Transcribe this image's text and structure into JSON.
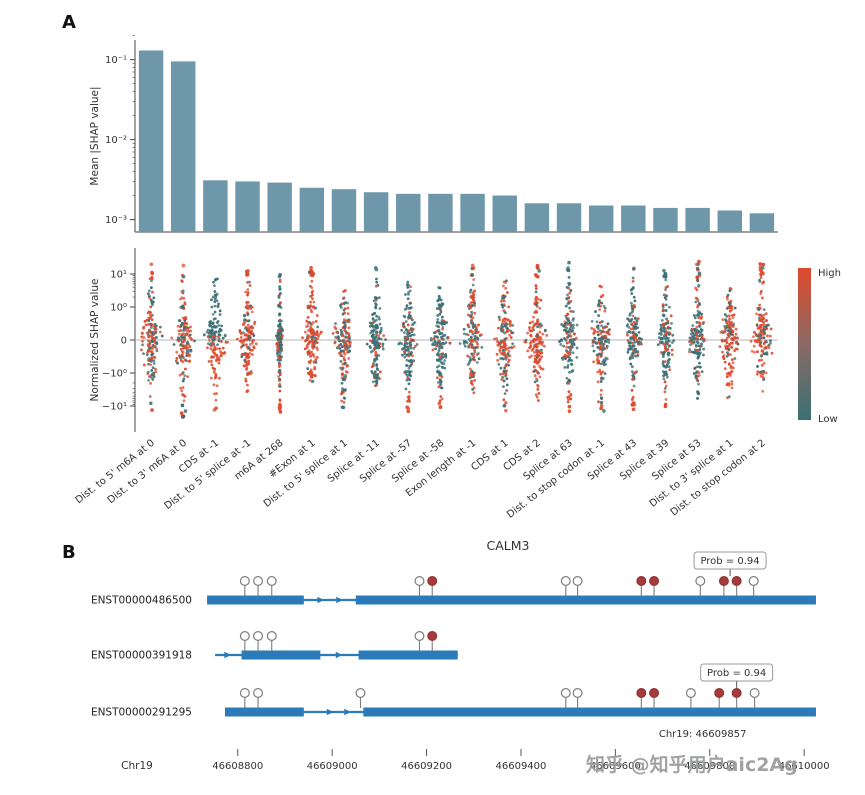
{
  "panels": {
    "a_label": "A",
    "b_label": "B"
  },
  "watermark": "知乎 @知乎用户aic2Ag",
  "colors": {
    "bar": "#6e97aa",
    "red": "#df4a2e",
    "teal": "#3a7075",
    "blue": "#2b7bba",
    "site_filled": "#a73b3c",
    "site_filled_stroke": "#8f3335",
    "axis": "#444444",
    "label": "#333333",
    "watermark": "#97999b"
  },
  "chart_data": [
    {
      "type": "bar",
      "title": "",
      "ylabel": "Mean |SHAP value|",
      "yscale": "log",
      "ylim": [
        0.0007,
        0.2
      ],
      "yticks": [
        {
          "v": 0.1,
          "label": "10⁻¹"
        },
        {
          "v": 0.01,
          "label": "10⁻²"
        },
        {
          "v": 0.001,
          "label": "10⁻³"
        }
      ],
      "categories": [
        "Dist. to 5' m6A at 0",
        "Dist. to 3' m6A at 0",
        "CDS at -1",
        "Dist. to 5' splice at -1",
        "m6A at 268",
        "#Exon at 1",
        "Dist. to 5' splice at 1",
        "Splice at -11",
        "Splice at -57",
        "Splice at -58",
        "Exon length at -1",
        "CDS at 1",
        "CDS at 2",
        "Splice at 63",
        "Dist. to stop codon at -1",
        "Splice at 43",
        "Splice at 39",
        "Splice at 53",
        "Dist. to 3' splice at 1",
        "Dist. to stop codon at 2"
      ],
      "values": [
        0.13,
        0.095,
        0.0031,
        0.003,
        0.0029,
        0.0025,
        0.0024,
        0.0022,
        0.0021,
        0.0021,
        0.0021,
        0.002,
        0.0016,
        0.0016,
        0.0015,
        0.0015,
        0.0014,
        0.0014,
        0.0013,
        0.0012
      ]
    },
    {
      "type": "beeswarm",
      "ylabel": "Normalized SHAP value",
      "yscale": "symlog",
      "yticks": [
        {
          "u": 2,
          "label": "10¹"
        },
        {
          "u": 1,
          "label": "10⁰"
        },
        {
          "u": 0,
          "label": "0"
        },
        {
          "u": -1,
          "label": "−10⁰"
        },
        {
          "u": -2,
          "label": "−10¹"
        }
      ],
      "colorbar": {
        "high_label": "High",
        "low_label": "Low"
      },
      "violins": [
        {
          "up": 2.3,
          "down": 2.3,
          "w": 10,
          "red": 0.55
        },
        {
          "up": 2.3,
          "down": 2.4,
          "w": 10,
          "red": 0.6
        },
        {
          "up": 1.9,
          "down": 2.3,
          "w": 10,
          "red": 0.5,
          "split": -1
        },
        {
          "up": 2.3,
          "down": 1.6,
          "w": 8,
          "red": 0.8
        },
        {
          "up": 2.2,
          "down": 2.2,
          "w": 3,
          "red": 0.3,
          "dr": true
        },
        {
          "up": 2.3,
          "down": 1.3,
          "w": 8,
          "red": 0.85
        },
        {
          "up": 1.6,
          "down": 2.3,
          "w": 9,
          "red": 0.5
        },
        {
          "up": 2.2,
          "down": 1.4,
          "w": 8,
          "red": 0.2
        },
        {
          "up": 1.8,
          "down": 2.3,
          "w": 8,
          "red": 0.22,
          "dr": true
        },
        {
          "up": 1.6,
          "down": 2.3,
          "w": 8,
          "red": 0.22,
          "dr": true
        },
        {
          "up": 2.3,
          "down": 1.6,
          "w": 9,
          "red": 0.5
        },
        {
          "up": 1.8,
          "down": 2.2,
          "w": 10,
          "red": 0.65
        },
        {
          "up": 2.4,
          "down": 2.0,
          "w": 10,
          "red": 0.8
        },
        {
          "up": 2.4,
          "down": 2.2,
          "w": 8,
          "red": 0.3,
          "dr": true
        },
        {
          "up": 1.7,
          "down": 2.3,
          "w": 9,
          "red": 0.45
        },
        {
          "up": 2.3,
          "down": 2.2,
          "w": 7,
          "red": 0.25,
          "dr": true
        },
        {
          "up": 2.2,
          "down": 2.2,
          "w": 7,
          "red": 0.25,
          "dr": true
        },
        {
          "up": 2.4,
          "down": 1.8,
          "w": 8,
          "red": 0.3
        },
        {
          "up": 1.9,
          "down": 1.9,
          "w": 9,
          "red": 0.8
        },
        {
          "up": 2.4,
          "down": 1.6,
          "w": 9,
          "red": 0.75
        }
      ]
    },
    {
      "type": "gene-model",
      "title": "CALM3",
      "axis_label": "Chr19",
      "xticks": [
        46608800,
        46609000,
        46609200,
        46609400,
        46609600,
        46609800,
        46610000
      ],
      "prob_text": "Prob = 0.94",
      "site_label": "Chr19: 46609857",
      "transcripts": [
        {
          "name": "ENST00000486500",
          "span": [
            46608735,
            46610025
          ],
          "exons": [
            [
              46608735,
              46608940
            ],
            [
              46609050,
              46610025
            ]
          ],
          "arrows": [
            46608975,
            46609015
          ],
          "sites": [
            {
              "p": 46608815,
              "f": false
            },
            {
              "p": 46608843,
              "f": false
            },
            {
              "p": 46608872,
              "f": false
            },
            {
              "p": 46609185,
              "f": false
            },
            {
              "p": 46609212,
              "f": true
            },
            {
              "p": 46609495,
              "f": false
            },
            {
              "p": 46609520,
              "f": false
            },
            {
              "p": 46609655,
              "f": true
            },
            {
              "p": 46609682,
              "f": true
            },
            {
              "p": 46609780,
              "f": false
            },
            {
              "p": 46609830,
              "f": true
            },
            {
              "p": 46609857,
              "f": true
            },
            {
              "p": 46609893,
              "f": false
            }
          ],
          "prob_at": 46609843
        },
        {
          "name": "ENST00000391918",
          "span": [
            46608752,
            46609266
          ],
          "exons": [
            [
              46608808,
              46608975
            ],
            [
              46609056,
              46609266
            ]
          ],
          "arrows": [
            46608778,
            46609014
          ],
          "sites": [
            {
              "p": 46608815,
              "f": false
            },
            {
              "p": 46608843,
              "f": false
            },
            {
              "p": 46608872,
              "f": false
            },
            {
              "p": 46609185,
              "f": false
            },
            {
              "p": 46609212,
              "f": true
            }
          ],
          "prob_at": null
        },
        {
          "name": "ENST00000291295",
          "span": [
            46608773,
            46610025
          ],
          "exons": [
            [
              46608773,
              46608940
            ],
            [
              46609066,
              46610025
            ]
          ],
          "arrows": [
            46608995,
            46609032
          ],
          "sites": [
            {
              "p": 46608815,
              "f": false
            },
            {
              "p": 46608843,
              "f": false
            },
            {
              "p": 46609060,
              "f": false
            },
            {
              "p": 46609495,
              "f": false
            },
            {
              "p": 46609520,
              "f": false
            },
            {
              "p": 46609655,
              "f": true
            },
            {
              "p": 46609682,
              "f": true
            },
            {
              "p": 46609760,
              "f": false
            },
            {
              "p": 46609820,
              "f": true
            },
            {
              "p": 46609857,
              "f": true
            },
            {
              "p": 46609895,
              "f": false
            }
          ],
          "prob_at": 46609857
        }
      ]
    }
  ]
}
